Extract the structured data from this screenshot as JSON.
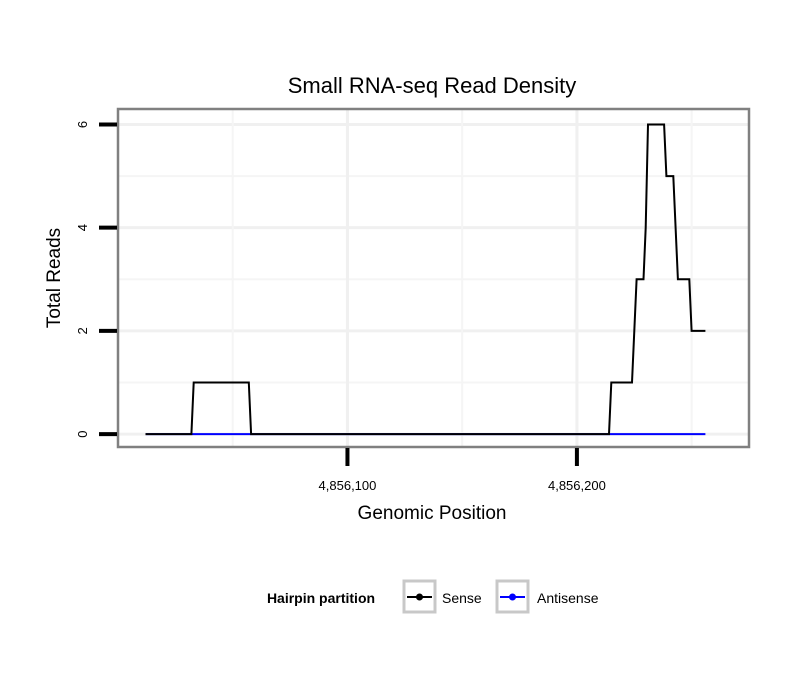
{
  "chart_data": {
    "type": "line",
    "title": "Small RNA-seq Read Density",
    "xlabel": "Genomic Position",
    "ylabel": "Total Reads",
    "xlim": [
      4856000,
      4856275
    ],
    "ylim": [
      -0.25,
      6.3
    ],
    "xticks": [
      4856100,
      4856200
    ],
    "xtick_labels": [
      "4,856,100",
      "4,856,200"
    ],
    "yticks": [
      0,
      2,
      4,
      6
    ],
    "ytick_labels": [
      "0",
      "2",
      "4",
      "6"
    ],
    "grid": true,
    "legend": {
      "title": "Hairpin partition",
      "position": "bottom",
      "entries": [
        "Sense",
        "Antisense"
      ]
    },
    "series": [
      {
        "name": "Sense",
        "color": "#000000",
        "points": [
          [
            4856012,
            0
          ],
          [
            4856032,
            0
          ],
          [
            4856033,
            1
          ],
          [
            4856057,
            1
          ],
          [
            4856058,
            0
          ],
          [
            4856214,
            0
          ],
          [
            4856215,
            1
          ],
          [
            4856224,
            1
          ],
          [
            4856226,
            3
          ],
          [
            4856229,
            3
          ],
          [
            4856230,
            4
          ],
          [
            4856231,
            6
          ],
          [
            4856238,
            6
          ],
          [
            4856239,
            5
          ],
          [
            4856242,
            5
          ],
          [
            4856244,
            3
          ],
          [
            4856249,
            3
          ],
          [
            4856250,
            2
          ],
          [
            4856256,
            2
          ]
        ]
      },
      {
        "name": "Antisense",
        "color": "#0000ff",
        "points": [
          [
            4856012,
            0
          ],
          [
            4856256,
            0
          ]
        ]
      }
    ]
  }
}
